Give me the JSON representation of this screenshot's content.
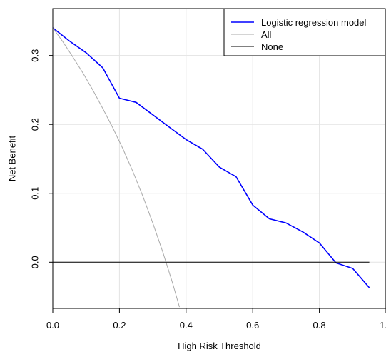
{
  "chart_data": {
    "type": "line",
    "title": "",
    "xlabel": "High Risk Threshold",
    "ylabel": "Net Benefit",
    "xlim": [
      0.0,
      1.0
    ],
    "ylim": [
      -0.067,
      0.368
    ],
    "xticks": [
      0.0,
      0.2,
      0.4,
      0.6,
      0.8,
      1.0
    ],
    "xtick_labels": [
      "0.0",
      "0.2",
      "0.4",
      "0.6",
      "0.8",
      "1.0"
    ],
    "yticks": [
      0.0,
      0.1,
      0.2,
      0.3
    ],
    "ytick_labels": [
      "0.0",
      "0.1",
      "0.2",
      "0.3"
    ],
    "grid": true,
    "legend_position": "top-right",
    "series": [
      {
        "name": "Logistic regression model",
        "color": "#0000ff",
        "x": [
          0.0,
          0.05,
          0.1,
          0.15,
          0.2,
          0.25,
          0.3,
          0.35,
          0.4,
          0.45,
          0.5,
          0.55,
          0.6,
          0.65,
          0.7,
          0.75,
          0.8,
          0.85,
          0.9,
          0.95
        ],
        "y": [
          0.34,
          0.321,
          0.304,
          0.282,
          0.238,
          0.232,
          0.214,
          0.196,
          0.178,
          0.164,
          0.138,
          0.124,
          0.083,
          0.063,
          0.057,
          0.044,
          0.028,
          -0.001,
          -0.009,
          -0.037
        ]
      },
      {
        "name": "All",
        "color": "#aaaaaa",
        "x": [
          0.0,
          0.03,
          0.06,
          0.09,
          0.12,
          0.15,
          0.18,
          0.21,
          0.24,
          0.27,
          0.3,
          0.33,
          0.36,
          0.38
        ],
        "y": [
          0.34,
          0.32,
          0.298,
          0.275,
          0.25,
          0.223,
          0.195,
          0.165,
          0.132,
          0.096,
          0.057,
          0.015,
          -0.031,
          -0.065
        ]
      },
      {
        "name": "None",
        "color": "#000000",
        "x": [
          0.0,
          0.95
        ],
        "y": [
          0.0,
          0.0
        ]
      }
    ]
  }
}
